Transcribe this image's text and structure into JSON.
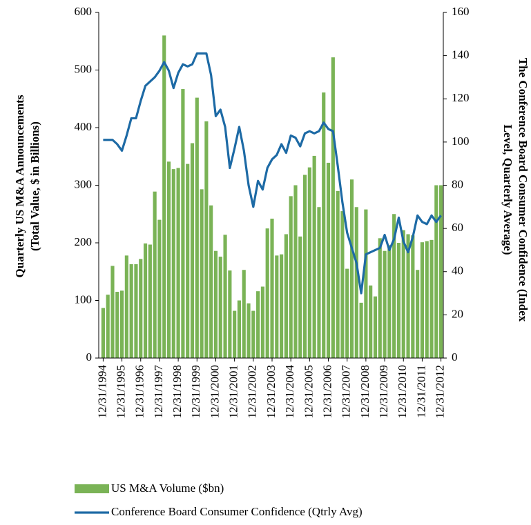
{
  "chart_data": {
    "type": "bar_line",
    "y_label": [
      "Quarterly US M&A Announcements",
      "(Total Value, $ in Billions)"
    ],
    "y2_label": [
      "The Conference Board Consumer Confidence (Index",
      "Level, Quarterly Average)"
    ],
    "categories": [
      "12/31/1994",
      null,
      null,
      null,
      "12/31/1995",
      null,
      null,
      null,
      "12/31/1996",
      null,
      null,
      null,
      "12/31/1997",
      null,
      null,
      null,
      "12/31/1998",
      null,
      null,
      null,
      "12/31/1999",
      null,
      null,
      null,
      "12/31/2000",
      null,
      null,
      null,
      "12/31/2001",
      null,
      null,
      null,
      "12/31/2002",
      null,
      null,
      null,
      "12/31/2003",
      null,
      null,
      null,
      "12/31/2004",
      null,
      null,
      null,
      "12/31/2005",
      null,
      null,
      null,
      "12/31/2006",
      null,
      null,
      null,
      "12/31/2007",
      null,
      null,
      null,
      "12/31/2008",
      null,
      null,
      null,
      "12/31/2009",
      null,
      null,
      null,
      "12/31/2010",
      null,
      null,
      null,
      "12/31/2011",
      null,
      null,
      null,
      "12/31/2012"
    ],
    "series": [
      {
        "name": "US M&A Volume ($bn)",
        "type": "bar",
        "color": "#7ab356",
        "values": [
          87,
          110,
          160,
          115,
          117,
          178,
          163,
          163,
          172,
          199,
          197,
          289,
          240,
          560,
          341,
          328,
          330,
          467,
          337,
          373,
          452,
          293,
          411,
          265,
          186,
          176,
          214,
          152,
          82,
          100,
          153,
          95,
          82,
          116,
          124,
          225,
          242,
          178,
          180,
          215,
          281,
          300,
          211,
          318,
          331,
          351,
          262,
          461,
          339,
          522,
          290,
          255,
          155,
          310,
          262,
          96,
          258,
          126,
          107,
          208,
          186,
          196,
          250,
          200,
          222,
          215,
          213,
          153,
          201,
          203,
          205,
          300,
          300
        ]
      },
      {
        "name": "Conference Board Consumer Confidence (Qtrly Avg)",
        "type": "line",
        "axis": "y2",
        "color": "#1d6aa5",
        "values": [
          101,
          101,
          101,
          99,
          96,
          103,
          111,
          111,
          119,
          126,
          128,
          130,
          133,
          137,
          133,
          125,
          132,
          136,
          135,
          136,
          141,
          141,
          141,
          131,
          112,
          115,
          107,
          88,
          97,
          107,
          96,
          80,
          70,
          82,
          78,
          88,
          92,
          94,
          99,
          95,
          103,
          102,
          98,
          104,
          105,
          104,
          105,
          109,
          106,
          105,
          89,
          72,
          58,
          51,
          44,
          30,
          48,
          49,
          50,
          51,
          57,
          50,
          55,
          65,
          54,
          49,
          56,
          66,
          63,
          62,
          66,
          63,
          66
        ]
      }
    ],
    "ylim": [
      0,
      600
    ],
    "yticks": [
      0,
      100,
      200,
      300,
      400,
      500,
      600
    ],
    "y2lim": [
      0,
      160
    ],
    "y2ticks": [
      0,
      20,
      40,
      60,
      80,
      100,
      120,
      140,
      160
    ]
  }
}
